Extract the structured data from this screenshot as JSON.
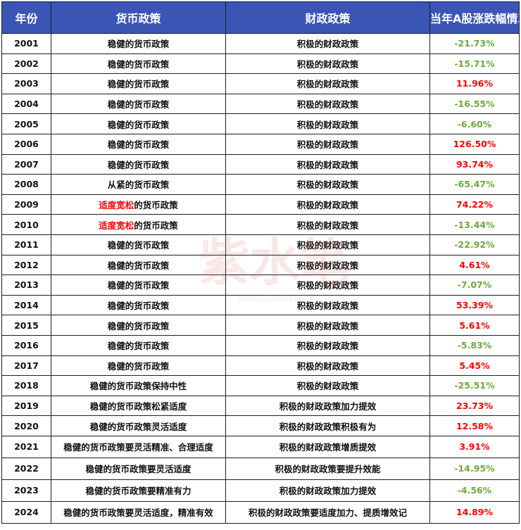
{
  "table": {
    "headers": {
      "year": "年份",
      "monetary": "货币政策",
      "fiscal": "财政政策",
      "change": "当年A股涨跌幅情况"
    },
    "rows": [
      {
        "year": "2001",
        "monetary": "稳健的货币政策",
        "fiscal": "积极的财政政策",
        "change": "-21.73%"
      },
      {
        "year": "2002",
        "monetary": "稳健的货币政策",
        "fiscal": "积极的财政政策",
        "change": "-15.71%"
      },
      {
        "year": "2003",
        "monetary": "稳健的货币政策",
        "fiscal": "积极的财政政策",
        "change": "11.96%"
      },
      {
        "year": "2004",
        "monetary": "稳健的货币政策",
        "fiscal": "积极的财政政策",
        "change": "-16.55%"
      },
      {
        "year": "2005",
        "monetary": "稳健的货币政策",
        "fiscal": "积极的财政政策",
        "change": "-6.60%"
      },
      {
        "year": "2006",
        "monetary": "稳健的货币政策",
        "fiscal": "积极的财政政策",
        "change": "126.50%"
      },
      {
        "year": "2007",
        "monetary": "稳健的货币政策",
        "fiscal": "积极的财政政策",
        "change": "93.74%"
      },
      {
        "year": "2008",
        "monetary": "从紧的货币政策",
        "fiscal": "积极的财政政策",
        "change": "-65.47%"
      },
      {
        "year": "2009",
        "monetary_highlight": "适度宽松",
        "monetary_rest": "的货币政策",
        "fiscal": "积极的财政政策",
        "change": "74.22%"
      },
      {
        "year": "2010",
        "monetary_highlight": "适度宽松",
        "monetary_rest": "的货币政策",
        "fiscal": "积极的财政政策",
        "change": "-13.44%"
      },
      {
        "year": "2011",
        "monetary": "稳健的货币政策",
        "fiscal": "积极的财政政策",
        "change": "-22.92%"
      },
      {
        "year": "2012",
        "monetary": "稳健的货币政策",
        "fiscal": "积极的财政政策",
        "change": "4.61%"
      },
      {
        "year": "2013",
        "monetary": "稳健的货币政策",
        "fiscal": "积极的财政政策",
        "change": "-7.07%"
      },
      {
        "year": "2014",
        "monetary": "稳健的货币政策",
        "fiscal": "积极的财政政策",
        "change": "53.39%"
      },
      {
        "year": "2015",
        "monetary": "稳健的货币政策",
        "fiscal": "积极的财政政策",
        "change": "5.61%"
      },
      {
        "year": "2016",
        "monetary": "稳健的货币政策",
        "fiscal": "积极的财政政策",
        "change": "-5.83%"
      },
      {
        "year": "2017",
        "monetary": "稳健的货币政策",
        "fiscal": "积极的财政政策",
        "change": "5.45%"
      },
      {
        "year": "2018",
        "monetary": "稳健的货币政策保持中性",
        "fiscal": "积极的财政政策",
        "change": "-25.51%"
      },
      {
        "year": "2019",
        "monetary": "稳健的货币政策松紧适度",
        "fiscal": "积极的财政政策加力提效",
        "change": "23.73%"
      },
      {
        "year": "2020",
        "monetary": "稳健的货币政策灵活适度",
        "fiscal": "积极的财政政策积极有为",
        "change": "12.58%"
      },
      {
        "year": "2021",
        "monetary": "稳健的货币政策要灵活精准、合理适度",
        "fiscal": "积极的财政政策增质提效",
        "change": "3.91%"
      },
      {
        "year": "2022",
        "monetary": "稳健的货币政策要灵活适度",
        "fiscal": "积极的财政政策要提升效能",
        "change": "-14.95%"
      },
      {
        "year": "2023",
        "monetary": "稳健的货币政策要精准有力",
        "fiscal": "积极的财政政策加力提效",
        "change": "-4.56%"
      },
      {
        "year": "2024",
        "monetary": "稳健的货币政策要灵活适度，精准有效",
        "fiscal": "积极的财政政策要适度加力、提质增效记",
        "change": "14.89%"
      }
    ]
  },
  "colors": {
    "header_bg": "#3a55b4",
    "positive": "#ff0000",
    "negative": "#6aaa3c",
    "highlight": "#ff0000"
  },
  "watermark": {
    "text": "紫水笔",
    "subtext": "www.zishuibi.com"
  }
}
